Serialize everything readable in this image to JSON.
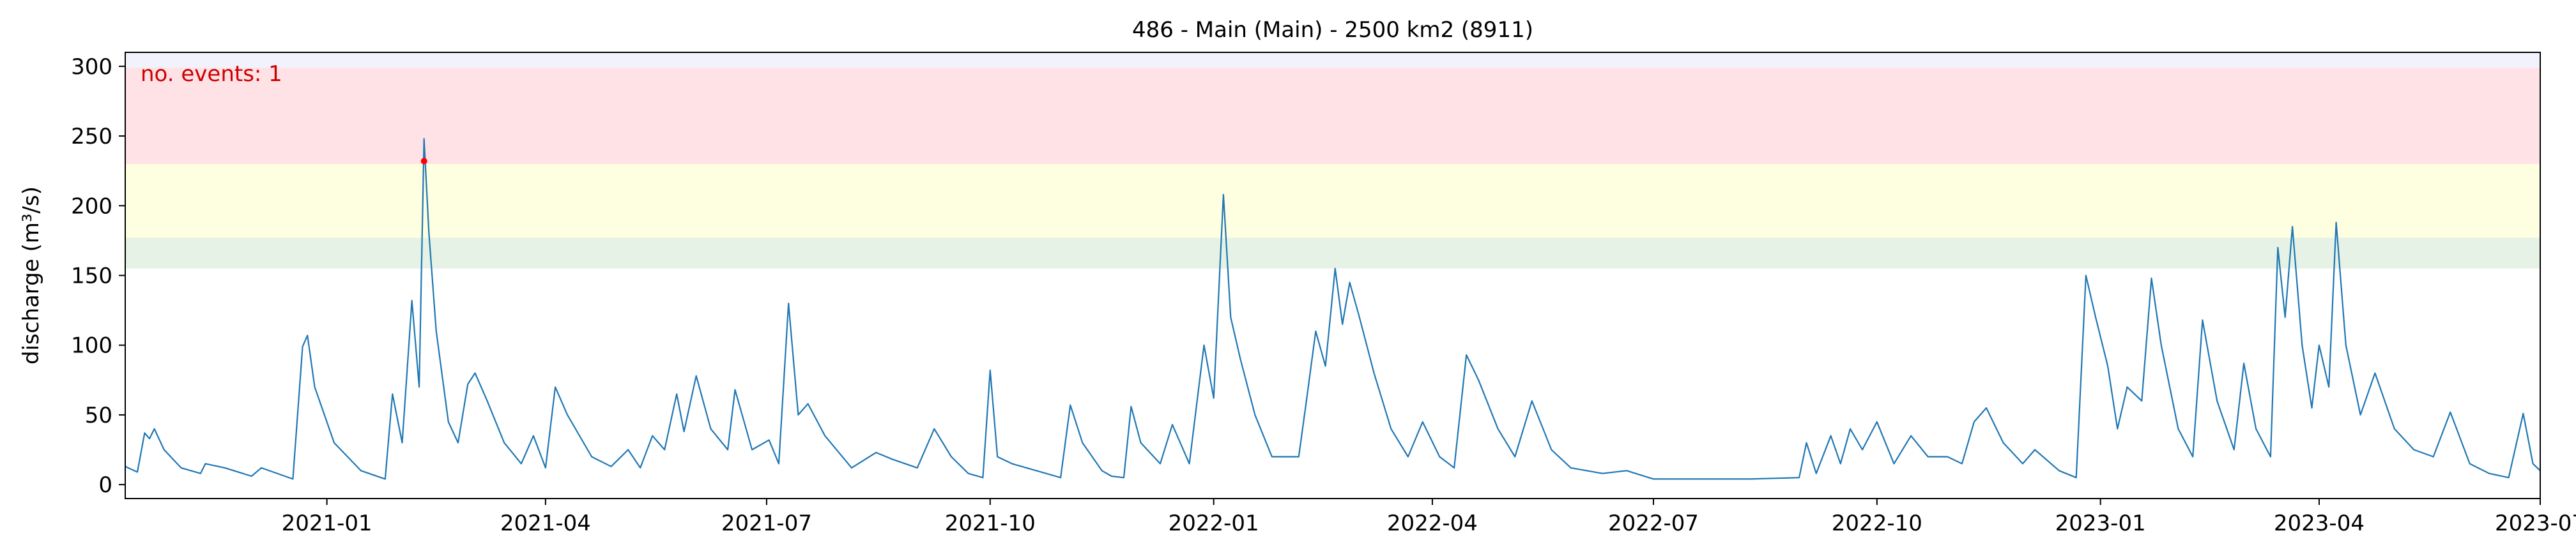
{
  "chart_data": {
    "type": "line",
    "title": "486 - Main (Main) - 2500 km2 (8911)",
    "xlabel": "",
    "ylabel": "discharge (m³/s)",
    "annotation": "no. events: 1",
    "xlim": [
      "2020-10-10",
      "2023-07-01"
    ],
    "ylim": [
      -10,
      310
    ],
    "grid": false,
    "x_ticks": [
      "2021-01-01",
      "2021-04-01",
      "2021-07-01",
      "2021-10-01",
      "2022-01-01",
      "2022-04-01",
      "2022-07-01",
      "2022-10-01",
      "2023-01-01",
      "2023-04-01",
      "2023-07-01"
    ],
    "x_tick_labels": [
      "2021-01",
      "2021-04",
      "2021-07",
      "2021-10",
      "2022-01",
      "2022-04",
      "2022-07",
      "2022-10",
      "2023-01",
      "2023-04",
      "2023-07"
    ],
    "y_ticks": [
      0,
      50,
      100,
      150,
      200,
      250,
      300
    ],
    "y_tick_labels": [
      "0",
      "50",
      "100",
      "150",
      "200",
      "250",
      "300"
    ],
    "bands": [
      {
        "from": 155,
        "to": 177,
        "color": "#e5f2e5"
      },
      {
        "from": 177,
        "to": 230,
        "color": "#fefee0"
      },
      {
        "from": 230,
        "to": 299,
        "color": "#ffe2e6"
      },
      {
        "from": 299,
        "to": 310,
        "color": "#f2f2fc"
      }
    ],
    "colors": {
      "line": "#1f77b4",
      "event_marker": "#ff0000",
      "annotation": "#cc0000"
    },
    "series": [
      {
        "values": [
          [
            "2020-10-10",
            13
          ],
          [
            "2020-10-15",
            9
          ],
          [
            "2020-10-18",
            37
          ],
          [
            "2020-10-20",
            33
          ],
          [
            "2020-10-22",
            40
          ],
          [
            "2020-10-26",
            25
          ],
          [
            "2020-11-02",
            12
          ],
          [
            "2020-11-10",
            8
          ],
          [
            "2020-11-12",
            15
          ],
          [
            "2020-11-20",
            12
          ],
          [
            "2020-12-01",
            6
          ],
          [
            "2020-12-05",
            12
          ],
          [
            "2020-12-18",
            4
          ],
          [
            "2020-12-22",
            99
          ],
          [
            "2020-12-24",
            107
          ],
          [
            "2020-12-27",
            70
          ],
          [
            "2021-01-04",
            30
          ],
          [
            "2021-01-15",
            10
          ],
          [
            "2021-01-25",
            4
          ],
          [
            "2021-01-28",
            65
          ],
          [
            "2021-02-01",
            30
          ],
          [
            "2021-02-05",
            132
          ],
          [
            "2021-02-08",
            70
          ],
          [
            "2021-02-10",
            248
          ],
          [
            "2021-02-12",
            180
          ],
          [
            "2021-02-15",
            110
          ],
          [
            "2021-02-20",
            45
          ],
          [
            "2021-02-24",
            30
          ],
          [
            "2021-02-28",
            72
          ],
          [
            "2021-03-03",
            80
          ],
          [
            "2021-03-08",
            60
          ],
          [
            "2021-03-15",
            30
          ],
          [
            "2021-03-22",
            15
          ],
          [
            "2021-03-27",
            35
          ],
          [
            "2021-04-01",
            12
          ],
          [
            "2021-04-05",
            70
          ],
          [
            "2021-04-10",
            50
          ],
          [
            "2021-04-20",
            20
          ],
          [
            "2021-04-28",
            13
          ],
          [
            "2021-05-05",
            25
          ],
          [
            "2021-05-10",
            12
          ],
          [
            "2021-05-15",
            35
          ],
          [
            "2021-05-20",
            25
          ],
          [
            "2021-05-25",
            65
          ],
          [
            "2021-05-28",
            38
          ],
          [
            "2021-06-02",
            78
          ],
          [
            "2021-06-08",
            40
          ],
          [
            "2021-06-15",
            25
          ],
          [
            "2021-06-18",
            68
          ],
          [
            "2021-06-25",
            25
          ],
          [
            "2021-07-02",
            32
          ],
          [
            "2021-07-06",
            15
          ],
          [
            "2021-07-10",
            130
          ],
          [
            "2021-07-14",
            50
          ],
          [
            "2021-07-18",
            58
          ],
          [
            "2021-07-25",
            35
          ],
          [
            "2021-08-05",
            12
          ],
          [
            "2021-08-15",
            23
          ],
          [
            "2021-08-22",
            18
          ],
          [
            "2021-09-01",
            12
          ],
          [
            "2021-09-08",
            40
          ],
          [
            "2021-09-15",
            20
          ],
          [
            "2021-09-22",
            8
          ],
          [
            "2021-09-28",
            5
          ],
          [
            "2021-10-01",
            82
          ],
          [
            "2021-10-04",
            20
          ],
          [
            "2021-10-10",
            15
          ],
          [
            "2021-10-20",
            10
          ],
          [
            "2021-10-30",
            5
          ],
          [
            "2021-11-03",
            57
          ],
          [
            "2021-11-08",
            30
          ],
          [
            "2021-11-16",
            10
          ],
          [
            "2021-11-20",
            6
          ],
          [
            "2021-11-25",
            5
          ],
          [
            "2021-11-28",
            56
          ],
          [
            "2021-12-02",
            30
          ],
          [
            "2021-12-10",
            15
          ],
          [
            "2021-12-15",
            43
          ],
          [
            "2021-12-22",
            15
          ],
          [
            "2021-12-28",
            100
          ],
          [
            "2022-01-01",
            62
          ],
          [
            "2022-01-05",
            208
          ],
          [
            "2022-01-08",
            120
          ],
          [
            "2022-01-12",
            90
          ],
          [
            "2022-01-18",
            50
          ],
          [
            "2022-01-25",
            20
          ],
          [
            "2022-02-05",
            20
          ],
          [
            "2022-02-08",
            58
          ],
          [
            "2022-02-12",
            110
          ],
          [
            "2022-02-16",
            85
          ],
          [
            "2022-02-20",
            155
          ],
          [
            "2022-02-23",
            115
          ],
          [
            "2022-02-26",
            145
          ],
          [
            "2022-03-02",
            120
          ],
          [
            "2022-03-08",
            80
          ],
          [
            "2022-03-15",
            40
          ],
          [
            "2022-03-22",
            20
          ],
          [
            "2022-03-28",
            45
          ],
          [
            "2022-04-04",
            20
          ],
          [
            "2022-04-10",
            12
          ],
          [
            "2022-04-15",
            93
          ],
          [
            "2022-04-20",
            75
          ],
          [
            "2022-04-28",
            40
          ],
          [
            "2022-05-05",
            20
          ],
          [
            "2022-05-12",
            60
          ],
          [
            "2022-05-20",
            25
          ],
          [
            "2022-05-28",
            12
          ],
          [
            "2022-06-10",
            8
          ],
          [
            "2022-06-20",
            10
          ],
          [
            "2022-07-01",
            4
          ],
          [
            "2022-07-20",
            4
          ],
          [
            "2022-08-10",
            4
          ],
          [
            "2022-08-30",
            5
          ],
          [
            "2022-09-02",
            30
          ],
          [
            "2022-09-06",
            8
          ],
          [
            "2022-09-12",
            35
          ],
          [
            "2022-09-16",
            15
          ],
          [
            "2022-09-20",
            40
          ],
          [
            "2022-09-25",
            25
          ],
          [
            "2022-10-01",
            45
          ],
          [
            "2022-10-08",
            15
          ],
          [
            "2022-10-15",
            35
          ],
          [
            "2022-10-22",
            20
          ],
          [
            "2022-10-30",
            20
          ],
          [
            "2022-11-05",
            15
          ],
          [
            "2022-11-10",
            45
          ],
          [
            "2022-11-15",
            55
          ],
          [
            "2022-11-22",
            30
          ],
          [
            "2022-11-30",
            15
          ],
          [
            "2022-12-05",
            25
          ],
          [
            "2022-12-15",
            10
          ],
          [
            "2022-12-22",
            5
          ],
          [
            "2022-12-26",
            150
          ],
          [
            "2022-12-30",
            120
          ],
          [
            "2023-01-04",
            85
          ],
          [
            "2023-01-08",
            40
          ],
          [
            "2023-01-12",
            70
          ],
          [
            "2023-01-18",
            60
          ],
          [
            "2023-01-22",
            148
          ],
          [
            "2023-01-26",
            100
          ],
          [
            "2023-02-02",
            40
          ],
          [
            "2023-02-08",
            20
          ],
          [
            "2023-02-12",
            118
          ],
          [
            "2023-02-18",
            60
          ],
          [
            "2023-02-25",
            25
          ],
          [
            "2023-03-01",
            87
          ],
          [
            "2023-03-06",
            40
          ],
          [
            "2023-03-12",
            20
          ],
          [
            "2023-03-15",
            170
          ],
          [
            "2023-03-18",
            120
          ],
          [
            "2023-03-21",
            185
          ],
          [
            "2023-03-25",
            100
          ],
          [
            "2023-03-29",
            55
          ],
          [
            "2023-04-01",
            100
          ],
          [
            "2023-04-05",
            70
          ],
          [
            "2023-04-08",
            188
          ],
          [
            "2023-04-12",
            100
          ],
          [
            "2023-04-18",
            50
          ],
          [
            "2023-04-24",
            80
          ],
          [
            "2023-05-02",
            40
          ],
          [
            "2023-05-10",
            25
          ],
          [
            "2023-05-18",
            20
          ],
          [
            "2023-05-25",
            52
          ],
          [
            "2023-06-02",
            15
          ],
          [
            "2023-06-10",
            8
          ],
          [
            "2023-06-18",
            5
          ],
          [
            "2023-06-24",
            51
          ],
          [
            "2023-06-28",
            15
          ],
          [
            "2023-07-01",
            10
          ]
        ]
      }
    ],
    "events": [
      {
        "x": "2021-02-10",
        "y": 232
      }
    ]
  }
}
